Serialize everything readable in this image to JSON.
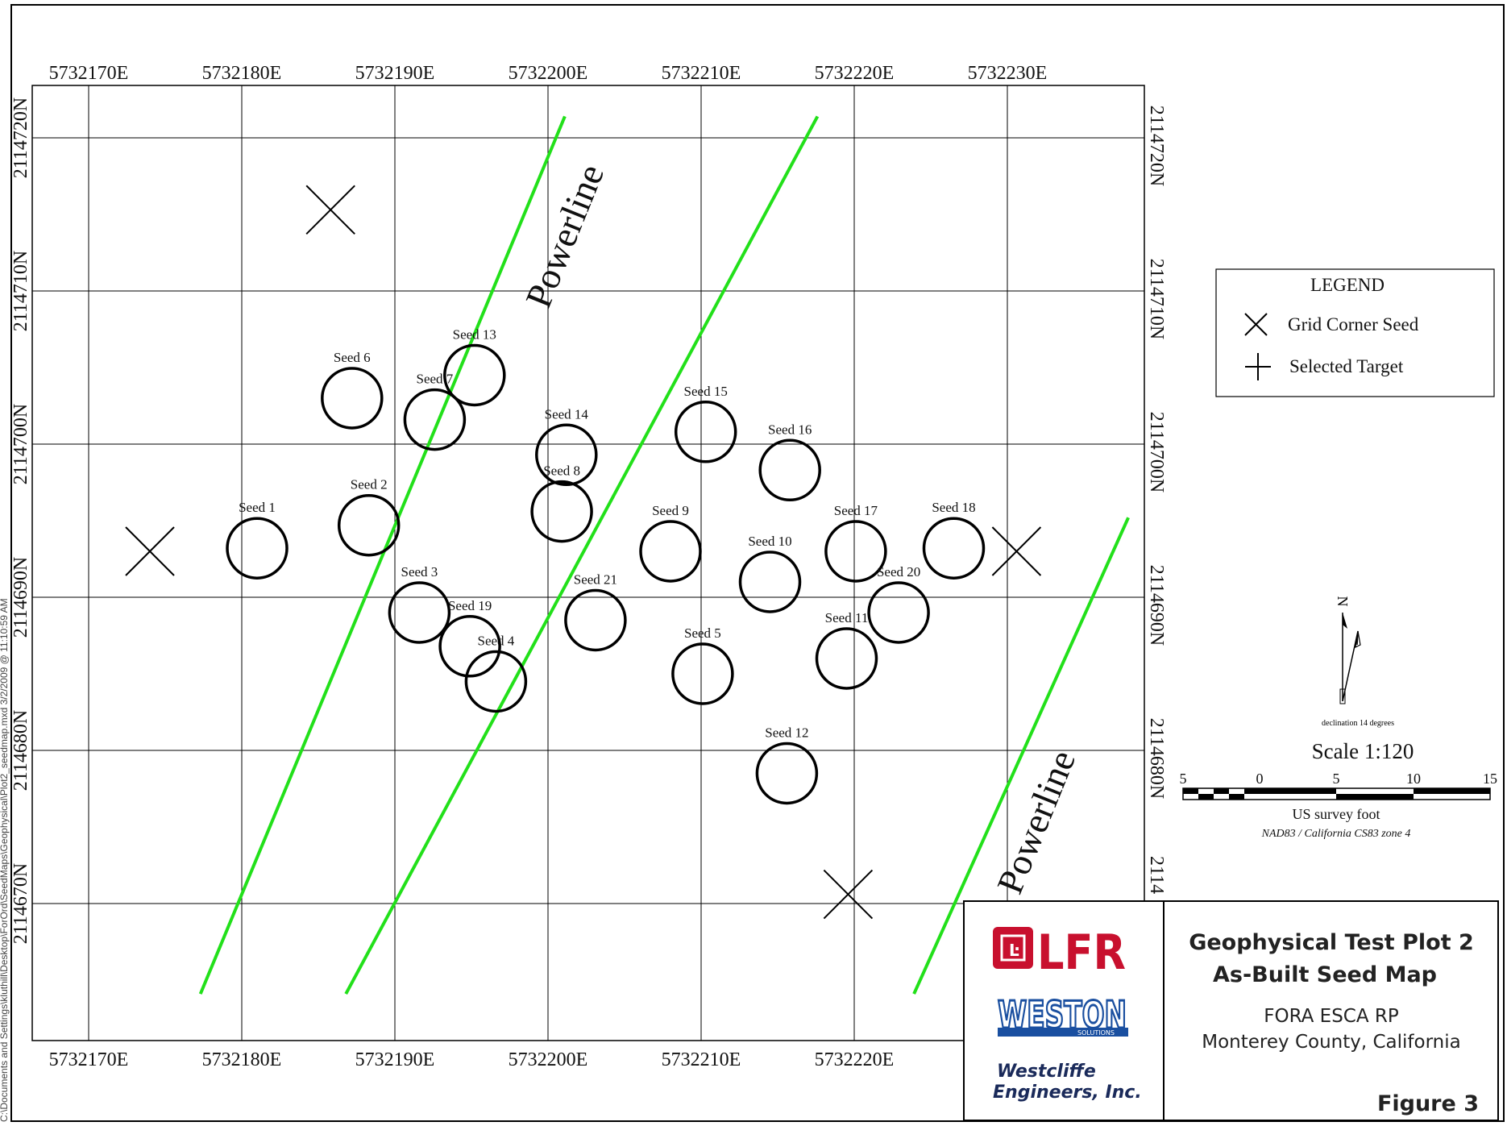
{
  "sidebar_path": "C:\\Documents and Settings\\kluthill\\Desktop\\ForOrd\\SeedMaps\\Geophysical\\Plot2_seedmap.mxd  3/2/2009 @ 11:10:59 AM",
  "grid": {
    "easting_labels": [
      "5732170E",
      "5732180E",
      "5732190E",
      "5732200E",
      "5732210E",
      "5732220E",
      "5732230E"
    ],
    "northing_labels": [
      "2114720N",
      "2114710N",
      "2114700N",
      "2114690N",
      "2114680N",
      "2114670N"
    ]
  },
  "annotations": {
    "powerline_label": "Powerline"
  },
  "map_features": {
    "seeds": [
      {
        "label": "Seed 1",
        "e": 5732181.0,
        "n": 2114693.2
      },
      {
        "label": "Seed 2",
        "e": 5732188.3,
        "n": 2114694.7
      },
      {
        "label": "Seed 3",
        "e": 5732191.6,
        "n": 2114689.0
      },
      {
        "label": "Seed 4",
        "e": 5732196.6,
        "n": 2114684.5
      },
      {
        "label": "Seed 5",
        "e": 5732210.1,
        "n": 2114685.0
      },
      {
        "label": "Seed 6",
        "e": 5732187.2,
        "n": 2114703.0
      },
      {
        "label": "Seed 7",
        "e": 5732192.6,
        "n": 2114701.6
      },
      {
        "label": "Seed 8",
        "e": 5732200.9,
        "n": 2114695.6
      },
      {
        "label": "Seed 9",
        "e": 5732208.0,
        "n": 2114693.0
      },
      {
        "label": "Seed 10",
        "e": 5732214.5,
        "n": 2114691.0
      },
      {
        "label": "Seed 11",
        "e": 5732219.5,
        "n": 2114686.0
      },
      {
        "label": "Seed 12",
        "e": 5732215.6,
        "n": 2114678.5
      },
      {
        "label": "Seed 13",
        "e": 5732195.2,
        "n": 2114704.5
      },
      {
        "label": "Seed 14",
        "e": 5732201.2,
        "n": 2114699.3
      },
      {
        "label": "Seed 15",
        "e": 5732210.3,
        "n": 2114700.8
      },
      {
        "label": "Seed 16",
        "e": 5732215.8,
        "n": 2114698.3
      },
      {
        "label": "Seed 17",
        "e": 5732220.1,
        "n": 2114693.0
      },
      {
        "label": "Seed 18",
        "e": 5732226.5,
        "n": 2114693.2
      },
      {
        "label": "Seed 19",
        "e": 5732194.9,
        "n": 2114686.8
      },
      {
        "label": "Seed 20",
        "e": 5732222.9,
        "n": 2114689.0
      },
      {
        "label": "Seed 21",
        "e": 5732203.1,
        "n": 2114688.5
      }
    ],
    "grid_corner_seeds": [
      {
        "e": 5732174.0,
        "n": 2114693.0
      },
      {
        "e": 5732185.8,
        "n": 2114715.3
      },
      {
        "e": 5732230.6,
        "n": 2114693.0
      },
      {
        "e": 5732219.6,
        "n": 2114670.6
      }
    ],
    "powerlines": [
      {
        "start": {
          "e": 5732177.3,
          "n": 2114664.1
        },
        "end": {
          "e": 5732201.1,
          "n": 2114721.4
        }
      },
      {
        "start": {
          "e": 5732186.8,
          "n": 2114664.1
        },
        "end": {
          "e": 5732217.6,
          "n": 2114721.4
        }
      },
      {
        "start": {
          "e": 5732223.9,
          "n": 2114664.1
        },
        "end": {
          "e": 5732237.9,
          "n": 2114695.2
        }
      }
    ],
    "line_color": "#22e01a"
  },
  "legend": {
    "title": "LEGEND",
    "items": [
      {
        "label": "Grid Corner Seed",
        "icon": "x-cross-icon"
      },
      {
        "label": "Selected Target",
        "icon": "plus-cross-icon"
      }
    ]
  },
  "north_arrow": {
    "label": "N",
    "declination": "declination  14 degrees"
  },
  "scale": {
    "title": "Scale 1:120",
    "tick_labels": [
      "5",
      "0",
      "5",
      "10",
      "15"
    ],
    "units": "US survey foot",
    "projection": "NAD83 / California CS83 zone 4"
  },
  "title_block": {
    "title_line1": "Geophysical Test Plot 2",
    "title_line2": "As-Built Seed Map",
    "subtitle1": "FORA ESCA RP",
    "subtitle2": "Monterey County, California",
    "figure": "Figure 3",
    "logos": {
      "lfr": "LFR",
      "weston": "WESTON",
      "weston_sub": "SOLUTIONS",
      "westcliffe1": "Westcliffe",
      "westcliffe2": "Engineers, Inc."
    }
  }
}
